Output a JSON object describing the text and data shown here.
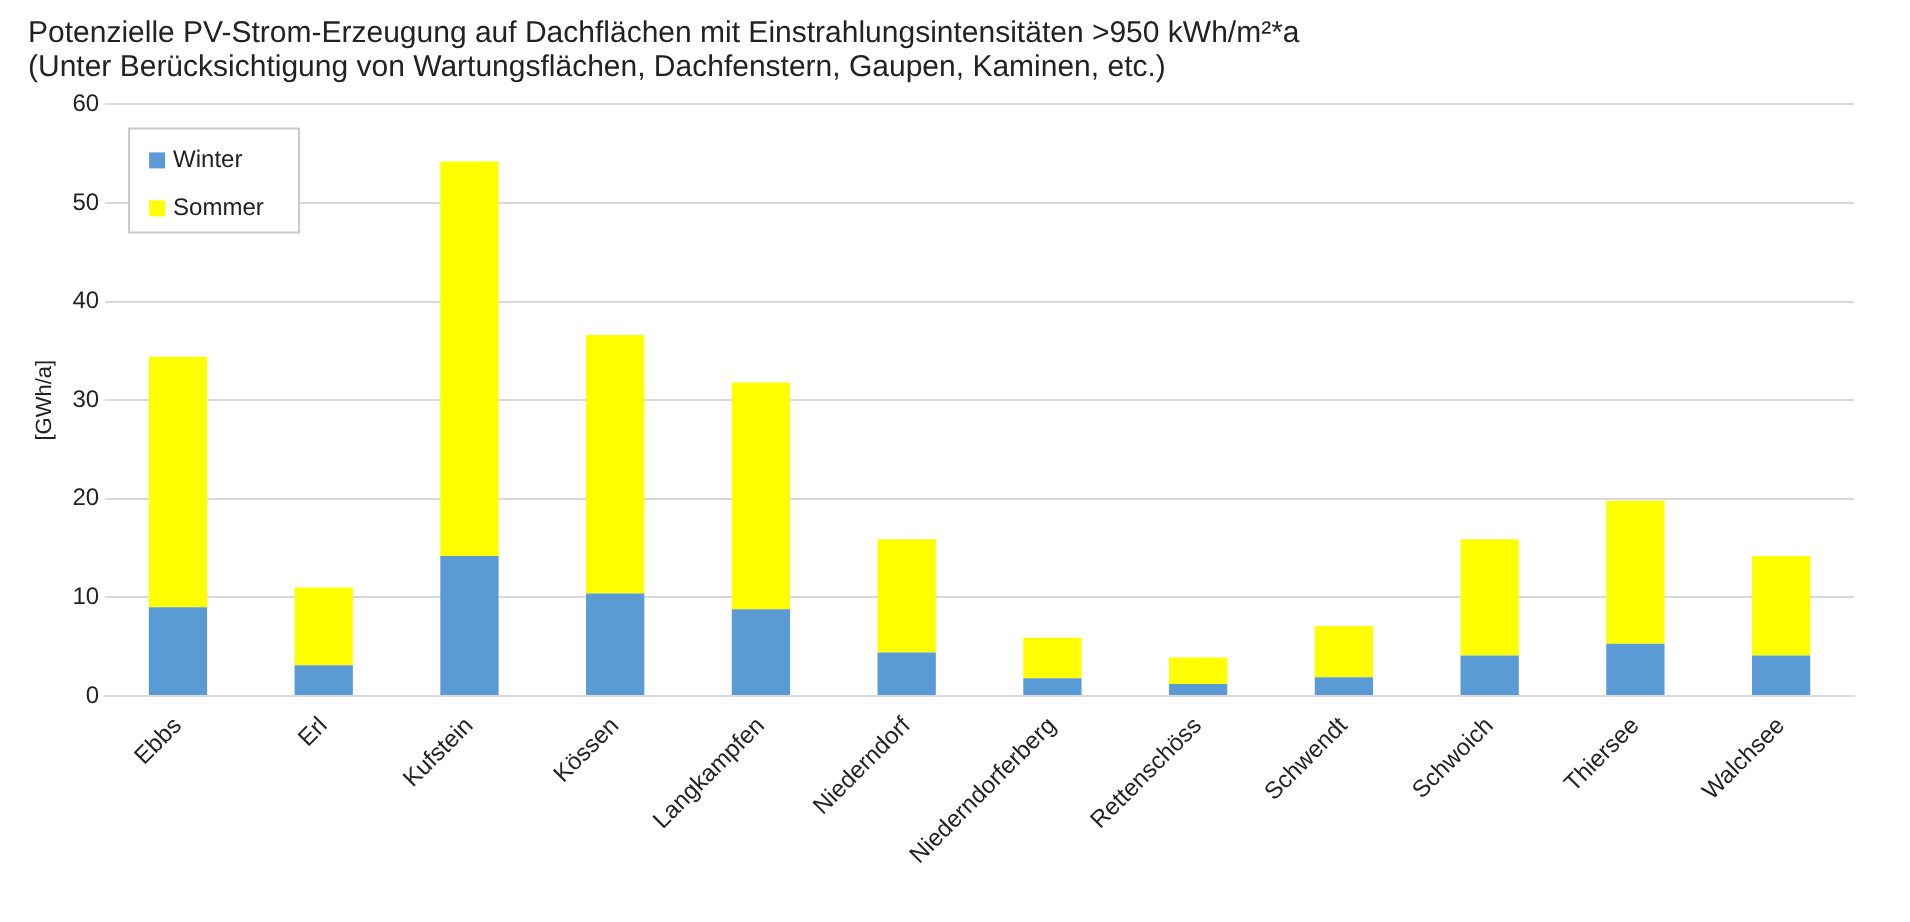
{
  "chart_data": {
    "type": "bar",
    "title": "Potenzielle PV-Strom-Erzeugung auf Dachflächen mit Einstrahlungsintensitäten >950 kWh/m²*a",
    "subtitle": "(Unter Berücksichtigung von Wartungsflächen, Dachfenstern, Gaupen, Kaminen, etc.)",
    "ylabel": "[GWh/a]",
    "categories": [
      "Ebbs",
      "Erl",
      "Kufstein",
      "Kössen",
      "Langkampfen",
      "Niederndorf",
      "Niederndorferberg",
      "Rettenschöss",
      "Schwendt",
      "Schwoich",
      "Thiersee",
      "Walchsee"
    ],
    "series": [
      {
        "name": "Winter",
        "color": "#5b9bd5",
        "values": [
          9,
          3.1,
          14.2,
          10.4,
          8.8,
          4.4,
          1.8,
          1.2,
          1.9,
          4.1,
          5.3,
          4.1
        ]
      },
      {
        "name": "Sommer",
        "color": "#ffff00",
        "values": [
          25.4,
          7.9,
          40,
          26.2,
          23,
          11.5,
          4.1,
          2.7,
          5.2,
          11.8,
          14.5,
          10.1
        ]
      }
    ],
    "stacked": true,
    "ylim": [
      0,
      60
    ],
    "yticks": [
      0,
      10,
      20,
      30,
      40,
      50,
      60
    ],
    "grid": "y",
    "legend": "top left"
  }
}
